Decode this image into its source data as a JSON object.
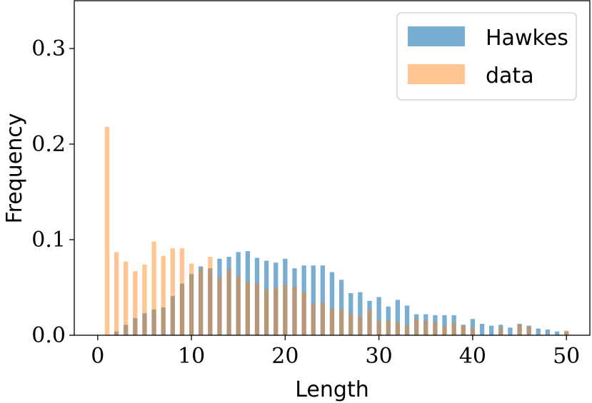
{
  "chart_data": {
    "type": "bar",
    "title": "",
    "xlabel": "Length",
    "ylabel": "Frequency",
    "xlim": [
      -2.5,
      52.5
    ],
    "ylim": [
      0.0,
      0.35
    ],
    "xticks": [
      0,
      10,
      20,
      30,
      40,
      50
    ],
    "xtick_labels": [
      "0",
      "10",
      "20",
      "30",
      "40",
      "50"
    ],
    "yticks": [
      0.0,
      0.1,
      0.2,
      0.3
    ],
    "ytick_labels": [
      "0.0",
      "0.1",
      "0.2",
      "0.3"
    ],
    "grid": false,
    "legend_position": "top-right",
    "x": [
      1,
      2,
      3,
      4,
      5,
      6,
      7,
      8,
      9,
      10,
      11,
      12,
      13,
      14,
      15,
      16,
      17,
      18,
      19,
      20,
      21,
      22,
      23,
      24,
      25,
      26,
      27,
      28,
      29,
      30,
      31,
      32,
      33,
      34,
      35,
      36,
      37,
      38,
      39,
      40,
      41,
      42,
      43,
      44,
      45,
      46,
      47,
      48,
      49,
      50
    ],
    "series": [
      {
        "name": "Hawkes",
        "color": "#1f77b4",
        "opacity": 0.6,
        "values": [
          0.0,
          0.004,
          0.011,
          0.018,
          0.023,
          0.027,
          0.029,
          0.041,
          0.054,
          0.064,
          0.072,
          0.07,
          0.08,
          0.082,
          0.087,
          0.088,
          0.081,
          0.078,
          0.076,
          0.08,
          0.07,
          0.073,
          0.073,
          0.073,
          0.066,
          0.058,
          0.044,
          0.045,
          0.036,
          0.04,
          0.03,
          0.037,
          0.031,
          0.022,
          0.022,
          0.021,
          0.021,
          0.021,
          0.011,
          0.017,
          0.012,
          0.01,
          0.011,
          0.008,
          0.012,
          0.01,
          0.007,
          0.006,
          0.004,
          0.004
        ]
      },
      {
        "name": "data",
        "color": "#ff7f0e",
        "opacity": 0.45,
        "values": [
          0.218,
          0.087,
          0.077,
          0.067,
          0.074,
          0.098,
          0.083,
          0.091,
          0.091,
          0.075,
          0.069,
          0.082,
          0.06,
          0.069,
          0.062,
          0.056,
          0.054,
          0.048,
          0.05,
          0.053,
          0.051,
          0.045,
          0.033,
          0.034,
          0.028,
          0.027,
          0.023,
          0.02,
          0.027,
          0.015,
          0.015,
          0.014,
          0.01,
          0.017,
          0.015,
          0.014,
          0.01,
          0.013,
          0.01,
          0.008,
          0.0,
          0.0,
          0.008,
          0.0,
          0.011,
          0.009,
          0.0,
          0.0,
          0.0,
          0.005
        ]
      }
    ]
  }
}
